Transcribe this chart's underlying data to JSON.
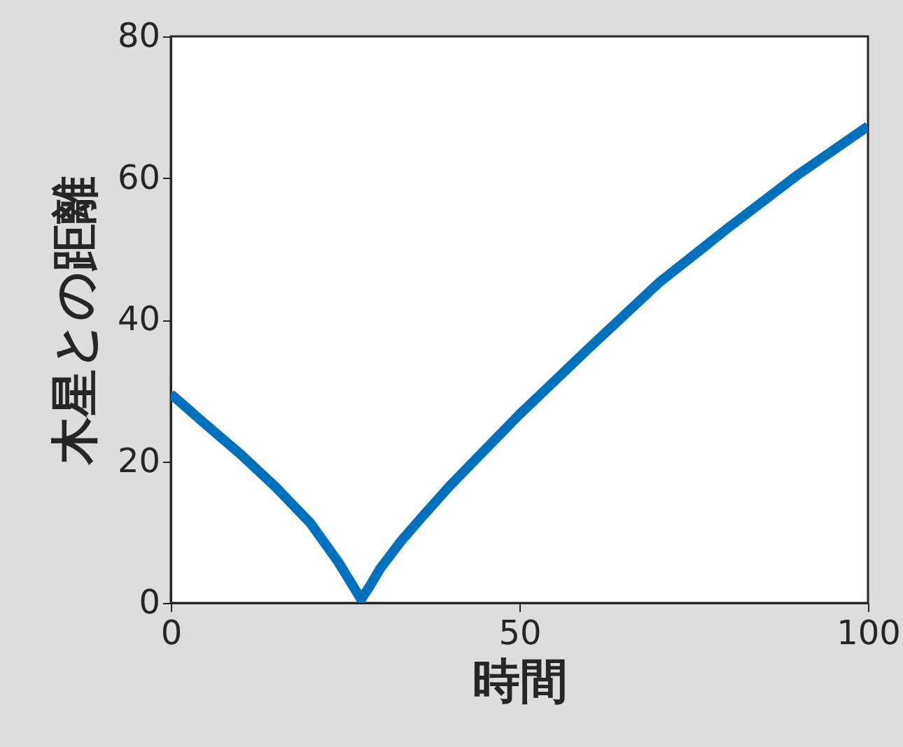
{
  "chart_data": {
    "type": "line",
    "xlabel": "時間",
    "ylabel": "木星との距離",
    "x": [
      0,
      5,
      10,
      15,
      20,
      24,
      26,
      27.3,
      28.5,
      30,
      33,
      36,
      40,
      50,
      60,
      70,
      80,
      90,
      100
    ],
    "series": [
      {
        "color": "#0072bd",
        "values": [
          29.5,
          25.2,
          21,
          16.4,
          11.3,
          5.8,
          2.6,
          0.5,
          2.3,
          4.8,
          8.7,
          12.1,
          16.5,
          26.6,
          36,
          45.2,
          53,
          60.5,
          67.3
        ]
      }
    ],
    "xlim": [
      0,
      100
    ],
    "ylim": [
      0,
      80
    ],
    "xticks": [
      0,
      50,
      100
    ],
    "yticks": [
      0,
      20,
      40,
      60,
      80
    ],
    "grid": false,
    "marker": "none",
    "line_style": "solid"
  }
}
